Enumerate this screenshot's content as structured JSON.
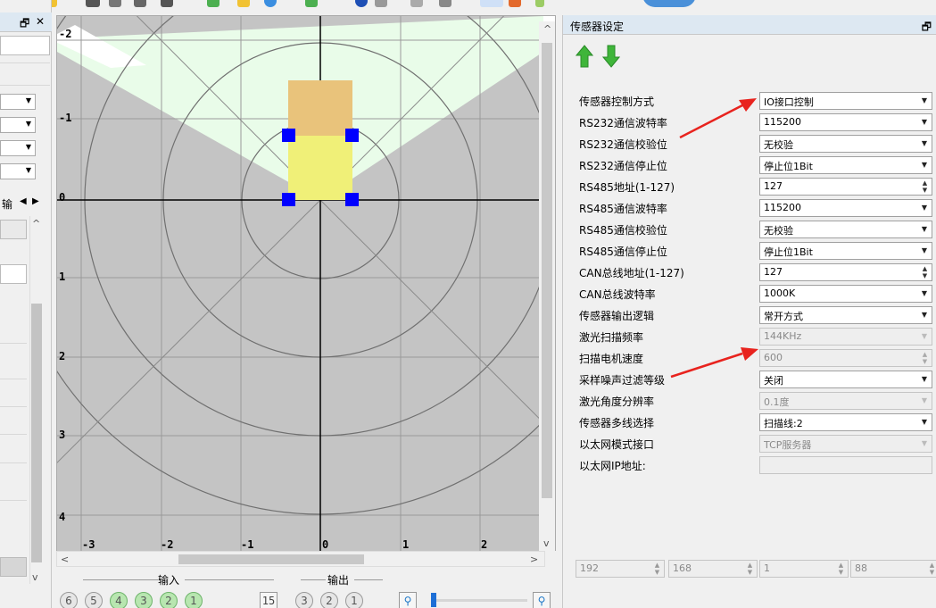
{
  "panel": {
    "title": "传感器设定",
    "float_icon": "restore-icon",
    "rows": [
      {
        "label": "传感器控制方式",
        "value": "IO接口控制",
        "type": "select",
        "enabled": true
      },
      {
        "label": "RS232通信波特率",
        "value": "115200",
        "type": "select",
        "enabled": true
      },
      {
        "label": "RS232通信校验位",
        "value": "无校验",
        "type": "select",
        "enabled": true
      },
      {
        "label": "RS232通信停止位",
        "value": "停止位1Bit",
        "type": "select",
        "enabled": true
      },
      {
        "label": "RS485地址(1-127)",
        "value": "127",
        "type": "spin",
        "enabled": true
      },
      {
        "label": "RS485通信波特率",
        "value": "115200",
        "type": "select",
        "enabled": true
      },
      {
        "label": "RS485通信校验位",
        "value": "无校验",
        "type": "select",
        "enabled": true
      },
      {
        "label": "RS485通信停止位",
        "value": "停止位1Bit",
        "type": "select",
        "enabled": true
      },
      {
        "label": "CAN总线地址(1-127)",
        "value": "127",
        "type": "spin",
        "enabled": true
      },
      {
        "label": "CAN总线波特率",
        "value": "1000K",
        "type": "select",
        "enabled": true
      },
      {
        "label": "传感器输出逻辑",
        "value": "常开方式",
        "type": "select",
        "enabled": true
      },
      {
        "label": "激光扫描频率",
        "value": "144KHz",
        "type": "select",
        "enabled": false
      },
      {
        "label": "扫描电机速度",
        "value": "600",
        "type": "spin",
        "enabled": false
      },
      {
        "label": "采样噪声过滤等级",
        "value": "关闭",
        "type": "select",
        "enabled": true
      },
      {
        "label": "激光角度分辨率",
        "value": "0.1度",
        "type": "select",
        "enabled": false
      },
      {
        "label": "传感器多线选择",
        "value": "扫描线:2",
        "type": "select",
        "enabled": true
      },
      {
        "label": "以太网模式接口",
        "value": "TCP服务器",
        "type": "select",
        "enabled": false
      },
      {
        "label": "以太网IP地址:",
        "value": "",
        "type": "text",
        "enabled": false
      }
    ],
    "ip": [
      "192",
      "168",
      "1",
      "88"
    ]
  },
  "plot": {
    "y_ticks": [
      "-2",
      "-1",
      "0",
      "1",
      "2",
      "3",
      "4"
    ],
    "x_ticks": [
      "-3",
      "-2",
      "-1",
      "0",
      "1",
      "2"
    ]
  },
  "io": {
    "input_label": "输入",
    "output_label": "输出",
    "inputs": [
      {
        "n": "6",
        "on": false
      },
      {
        "n": "5",
        "on": false
      },
      {
        "n": "4",
        "on": true
      },
      {
        "n": "3",
        "on": true
      },
      {
        "n": "2",
        "on": true
      },
      {
        "n": "1",
        "on": true
      }
    ],
    "outputs": [
      {
        "n": "3",
        "on": false
      },
      {
        "n": "2",
        "on": false
      },
      {
        "n": "1",
        "on": false
      }
    ],
    "seg_display": "15"
  },
  "left": {
    "tab_label": "输"
  },
  "colors": {
    "zone_gray": "#c4c4c4",
    "fan_green": "#e9fce9",
    "body_orange": "#e9c37b",
    "body_yellow": "#f0f078",
    "marker_blue": "#0000ff",
    "arrow_red": "#e8231e"
  }
}
